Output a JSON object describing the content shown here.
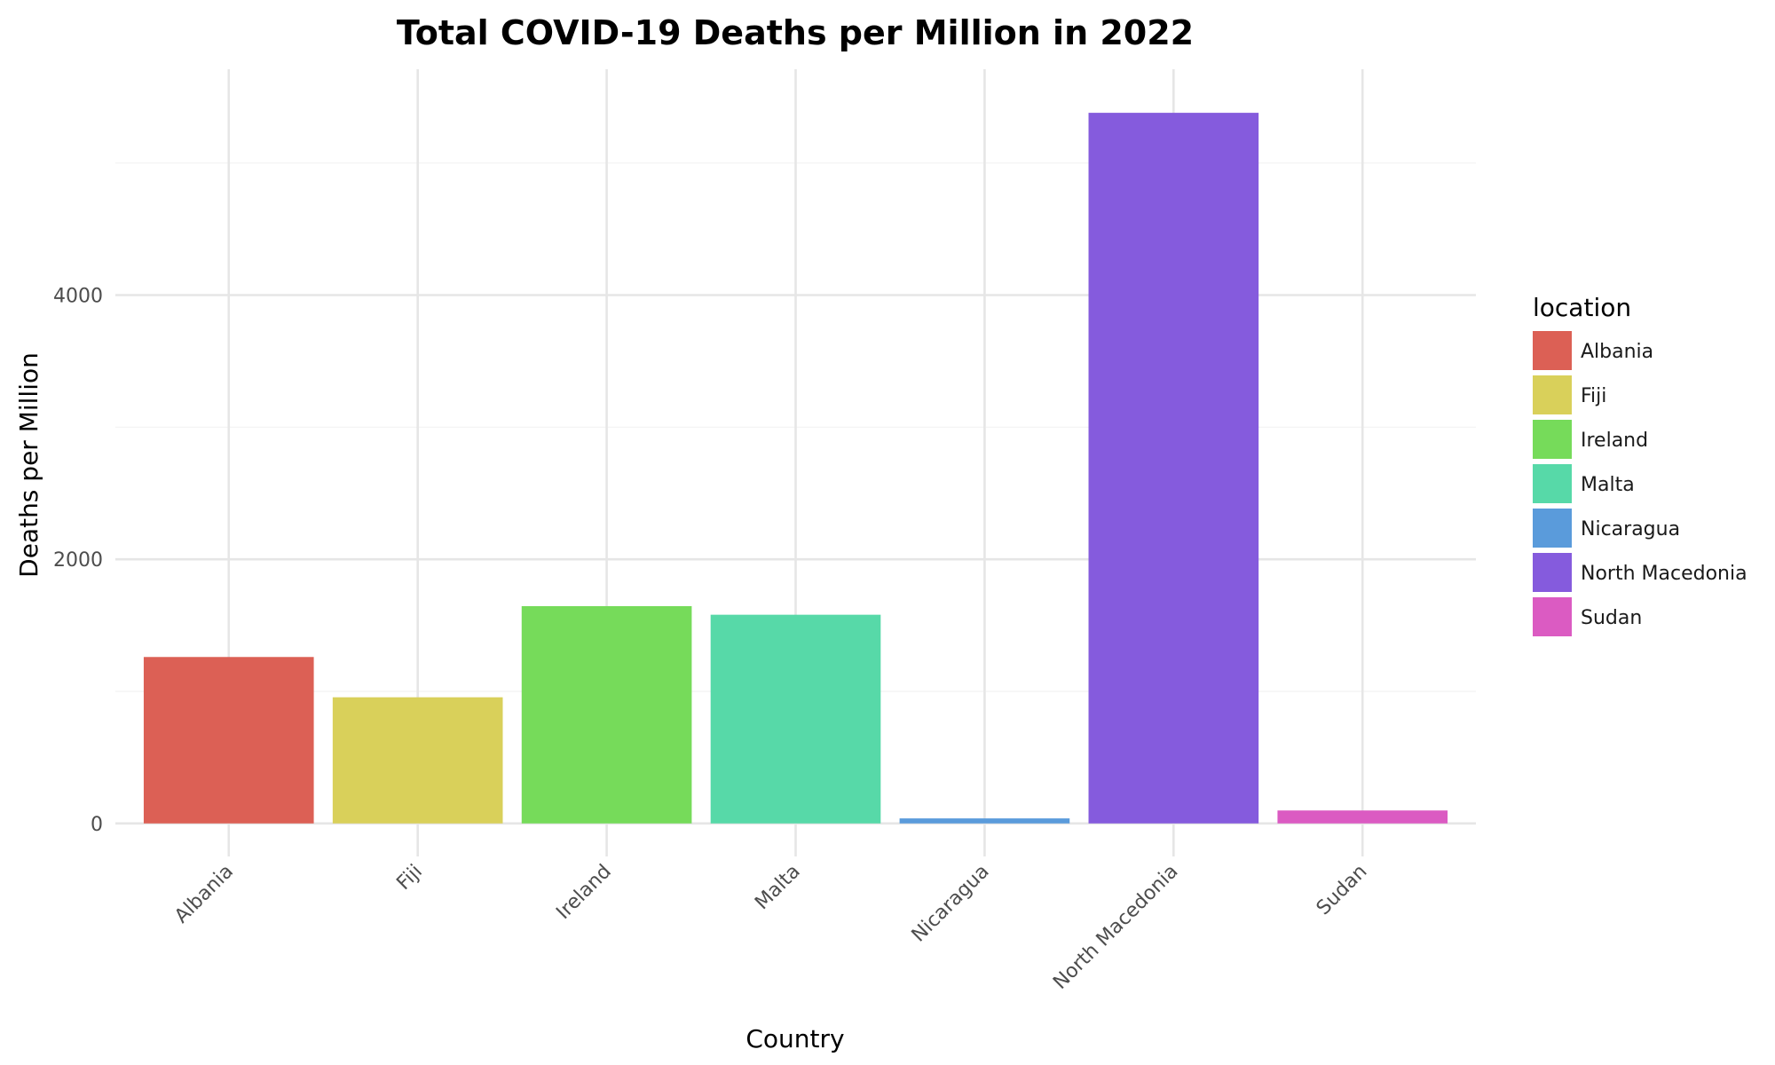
{
  "chart_data": {
    "type": "bar",
    "title": "Total COVID-19 Deaths per Million in 2022",
    "xlabel": "Country",
    "ylabel": "Deaths per Million",
    "categories": [
      "Albania",
      "Fiji",
      "Ireland",
      "Malta",
      "Nicaragua",
      "North Macedonia",
      "Sudan"
    ],
    "values": [
      1260,
      955,
      1645,
      1580,
      38,
      5380,
      98
    ],
    "colors": [
      "#DC6055",
      "#D9D05A",
      "#76DB5A",
      "#57D9A8",
      "#5A9BDB",
      "#855BDD",
      "#DB5BC2"
    ],
    "ylim": [
      -250,
      5710
    ],
    "yticks": [
      0,
      2000,
      4000
    ],
    "yticklabels": [
      "0",
      "2000",
      "4000"
    ],
    "grid": true,
    "legend": {
      "title": "location",
      "position": "right",
      "items": [
        "Albania",
        "Fiji",
        "Ireland",
        "Malta",
        "Nicaragua",
        "North Macedonia",
        "Sudan"
      ]
    }
  }
}
